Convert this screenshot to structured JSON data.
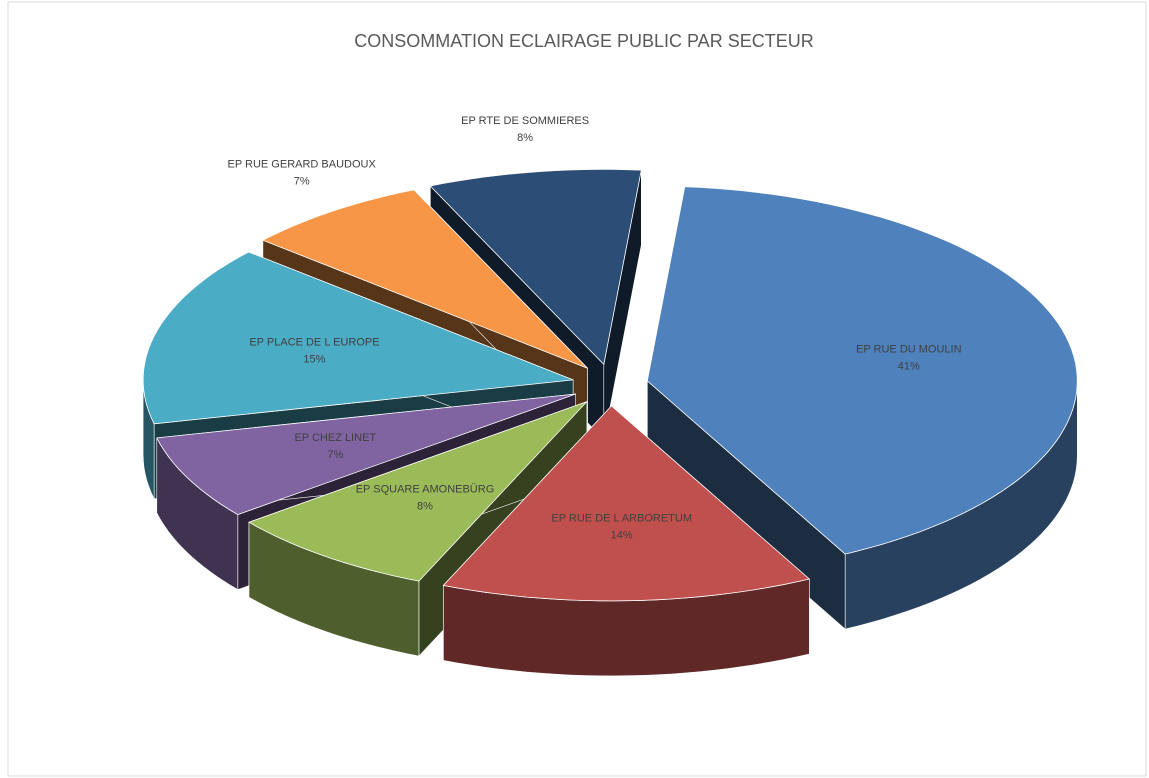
{
  "chart_data": {
    "type": "pie3d",
    "title": "CONSOMMATION  ECLAIRAGE PUBLIC PAR SECTEUR",
    "categories": [
      "EP RUE DU MOULIN",
      "EP RUE DE L ARBORETUM",
      "EP SQUARE AMONEBÜRG",
      "EP CHEZ LINET",
      "EP PLACE DE L EUROPE",
      "EP RUE GERARD BAUDOUX",
      "EP RTE DE SOMMIERES"
    ],
    "values": [
      41,
      14,
      8,
      7,
      15,
      7,
      8
    ],
    "value_labels": [
      "41%",
      "14%",
      "8%",
      "7%",
      "15%",
      "7%",
      "8%"
    ],
    "colors": [
      "#4f81bd",
      "#c0504d",
      "#9bbb59",
      "#8064a2",
      "#4bacc6",
      "#f79646",
      "#2c4d75"
    ]
  }
}
